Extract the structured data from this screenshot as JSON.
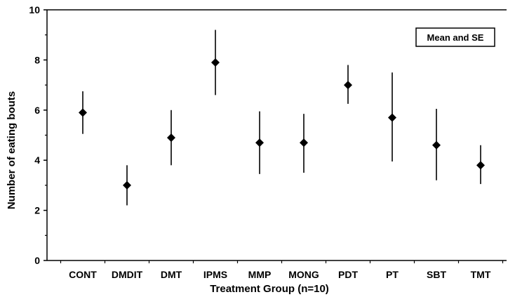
{
  "chart_data": {
    "type": "scatter",
    "title": "",
    "xlabel": "Treatment Group (n=10)",
    "ylabel": "Number of eating bouts",
    "legend_text": "Mean and SE",
    "legend_position": "top-right",
    "grid": false,
    "ylim": [
      0,
      10
    ],
    "yticks": [
      "0",
      "2",
      "4",
      "6",
      "8",
      "10"
    ],
    "categories": [
      "CONT",
      "DMDIT",
      "DMT",
      "IPMS",
      "MMP",
      "MONG",
      "PDT",
      "PT",
      "SBT",
      "TMT"
    ],
    "series": [
      {
        "marker": "diamond",
        "values": [
          5.9,
          3.0,
          4.9,
          7.9,
          4.7,
          4.7,
          7.0,
          5.7,
          4.6,
          3.8
        ],
        "error_low": [
          5.05,
          2.2,
          3.8,
          6.6,
          3.45,
          3.5,
          6.25,
          3.95,
          3.2,
          3.05
        ],
        "error_high": [
          6.75,
          3.8,
          6.0,
          9.2,
          5.95,
          5.85,
          7.8,
          7.5,
          6.05,
          4.6
        ]
      }
    ]
  }
}
